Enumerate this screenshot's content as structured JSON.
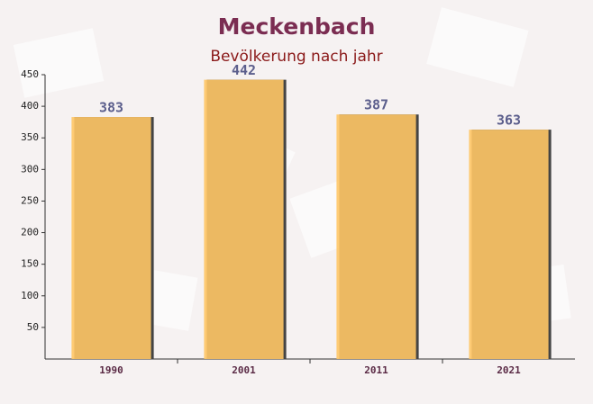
{
  "chart_data": {
    "type": "bar",
    "title": "Meckenbach",
    "subtitle": "Bevölkerung nach jahr",
    "categories": [
      "1990",
      "2001",
      "2011",
      "2021"
    ],
    "values": [
      383,
      442,
      387,
      363
    ],
    "color": "#ffc766",
    "ylim": [
      0,
      450
    ],
    "yticks": [
      50,
      100,
      150,
      200,
      250,
      300,
      350,
      400,
      450
    ],
    "grid": false
  }
}
